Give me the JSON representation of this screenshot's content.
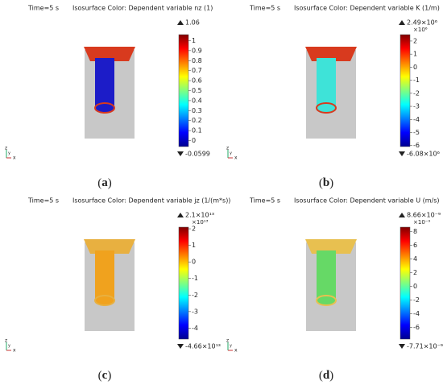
{
  "chart_data": [
    {
      "type": "colorbar",
      "time": "Time=5 s",
      "title": "Isosurface Color: Dependent variable nz (1)",
      "max_label": "1.06",
      "min_label": "-0.0599",
      "ylim": [
        -0.0599,
        1.06
      ],
      "yticks": [
        0,
        0.1,
        0.2,
        0.3,
        0.4,
        0.5,
        0.6,
        0.7,
        0.8,
        0.9,
        1
      ],
      "caption": "a",
      "triad": [
        "z",
        "y",
        "x"
      ],
      "surface_color": "#1c1cc8",
      "rim_color": "#d83a1e"
    },
    {
      "type": "colorbar",
      "time": "Time=5 s",
      "title": "Isosurface Color: Dependent variable K (1/m)",
      "max_label": "2.49×10⁶",
      "exponent": "×10⁶",
      "min_label": "-6.08×10⁶",
      "ylim": [
        -6.08,
        2.49
      ],
      "yticks": [
        -6,
        -5,
        -4,
        -3,
        -2,
        -1,
        0,
        1,
        2
      ],
      "caption": "b",
      "triad": [
        "z",
        "y",
        "x"
      ],
      "surface_color": "#3ee3d8",
      "rim_color": "#d83a1e"
    },
    {
      "type": "colorbar",
      "time": "Time=5 s",
      "title": "Isosurface Color: Dependent variable jz (1/(m*s))",
      "max_label": "2.1×10¹³",
      "exponent": "×10¹³",
      "min_label": "-4.66×10¹³",
      "ylim": [
        -4.66,
        2.1
      ],
      "yticks": [
        -4,
        -3,
        -2,
        -1,
        0,
        1,
        2
      ],
      "caption": "c",
      "triad": [
        "z",
        "y",
        "x"
      ],
      "surface_color": "#f0a21e",
      "rim_color": "#e8b040"
    },
    {
      "type": "colorbar",
      "time": "Time=5 s",
      "title": "Isosurface Color: Dependent variable U (m/s)",
      "max_label": "8.66×10⁻⁹",
      "exponent": "×10⁻⁹",
      "min_label": "-7.71×10⁻⁹",
      "ylim": [
        -7.71,
        8.66
      ],
      "yticks": [
        -6,
        -4,
        -2,
        0,
        2,
        4,
        6,
        8
      ],
      "caption": "d",
      "triad": [
        "z",
        "y",
        "x"
      ],
      "surface_color": "#66d966",
      "rim_color": "#e8c050"
    }
  ]
}
